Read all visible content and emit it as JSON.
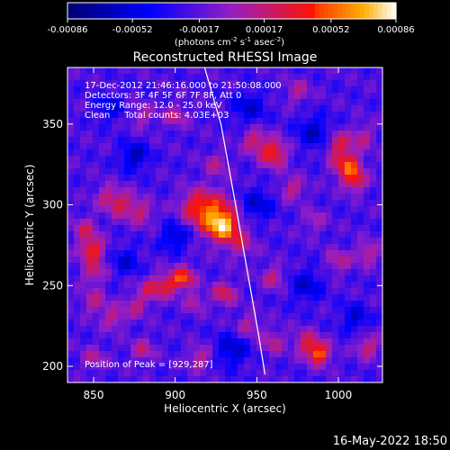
{
  "chart_data": {
    "type": "heatmap",
    "title": "Reconstructed RHESSI Image",
    "xlabel": "Heliocentric X (arcsec)",
    "ylabel": "Heliocentric Y (arcsec)",
    "xlim": [
      834,
      1027
    ],
    "ylim": [
      190,
      385
    ],
    "x_ticks": [
      850,
      900,
      950,
      1000
    ],
    "y_ticks": [
      200,
      250,
      300,
      350
    ],
    "colorbar": {
      "ticks": [
        "-0.00086",
        "-0.00052",
        "-0.00017",
        "0.00017",
        "0.00052",
        "0.00086"
      ],
      "tick_values": [
        -0.00086,
        -0.00052,
        -0.00017,
        0.00017,
        0.00052,
        0.00086
      ],
      "range": [
        -0.00086,
        0.00086
      ],
      "unit_label": "(photons cm",
      "unit_exp1": "-2",
      "unit_mid": " s",
      "unit_exp2": "-1",
      "unit_mid2": " asec",
      "unit_exp3": "-2",
      "unit_end": ")"
    },
    "annotations": [
      "17-Dec-2012 21:46:16.000 to 21:50:08.000",
      "Detectors: 3F 4F 5F 6F 7F 8F, Att 0",
      "Energy Range: 12.0 - 25.0 keV",
      "Clean     Total counts: 4.03E+03"
    ],
    "peak_label": "Position of Peak = [929,287]",
    "peak": [
      929,
      287
    ],
    "limb_curve": [
      [
        918,
        385
      ],
      [
        928,
        350
      ],
      [
        937,
        300
      ],
      [
        944,
        260
      ],
      [
        951,
        220
      ],
      [
        955,
        195
      ]
    ],
    "sources": [
      {
        "x": 929,
        "y": 287,
        "amp": 1.0,
        "r": 7
      },
      {
        "x": 922,
        "y": 297,
        "amp": 0.55,
        "r": 9
      },
      {
        "x": 912,
        "y": 299,
        "amp": 0.45,
        "r": 7
      },
      {
        "x": 940,
        "y": 276,
        "amp": 0.4,
        "r": 6
      },
      {
        "x": 849,
        "y": 272,
        "amp": 0.75,
        "r": 5
      },
      {
        "x": 845,
        "y": 285,
        "amp": 0.45,
        "r": 5
      },
      {
        "x": 850,
        "y": 258,
        "amp": 0.45,
        "r": 5
      },
      {
        "x": 858,
        "y": 305,
        "amp": 0.4,
        "r": 5
      },
      {
        "x": 868,
        "y": 300,
        "amp": 0.5,
        "r": 6
      },
      {
        "x": 880,
        "y": 295,
        "amp": 0.4,
        "r": 5
      },
      {
        "x": 905,
        "y": 255,
        "amp": 0.75,
        "r": 5
      },
      {
        "x": 895,
        "y": 250,
        "amp": 0.55,
        "r": 5
      },
      {
        "x": 885,
        "y": 248,
        "amp": 0.45,
        "r": 5
      },
      {
        "x": 912,
        "y": 240,
        "amp": 0.4,
        "r": 4
      },
      {
        "x": 930,
        "y": 245,
        "amp": 0.55,
        "r": 5
      },
      {
        "x": 876,
        "y": 238,
        "amp": 0.4,
        "r": 5
      },
      {
        "x": 862,
        "y": 230,
        "amp": 0.45,
        "r": 5
      },
      {
        "x": 850,
        "y": 240,
        "amp": 0.4,
        "r": 5
      },
      {
        "x": 960,
        "y": 332,
        "amp": 0.75,
        "r": 6
      },
      {
        "x": 948,
        "y": 340,
        "amp": 0.5,
        "r": 5
      },
      {
        "x": 972,
        "y": 310,
        "amp": 0.45,
        "r": 5
      },
      {
        "x": 1005,
        "y": 325,
        "amp": 0.75,
        "r": 6
      },
      {
        "x": 1010,
        "y": 315,
        "amp": 0.6,
        "r": 5
      },
      {
        "x": 1000,
        "y": 338,
        "amp": 0.55,
        "r": 5
      },
      {
        "x": 1015,
        "y": 342,
        "amp": 0.4,
        "r": 5
      },
      {
        "x": 988,
        "y": 208,
        "amp": 0.85,
        "r": 5
      },
      {
        "x": 980,
        "y": 215,
        "amp": 0.5,
        "r": 5
      },
      {
        "x": 1018,
        "y": 212,
        "amp": 0.5,
        "r": 5
      },
      {
        "x": 1018,
        "y": 270,
        "amp": 0.45,
        "r": 5
      },
      {
        "x": 1000,
        "y": 265,
        "amp": 0.4,
        "r": 5
      },
      {
        "x": 960,
        "y": 255,
        "amp": 0.45,
        "r": 5
      },
      {
        "x": 945,
        "y": 225,
        "amp": 0.4,
        "r": 5
      },
      {
        "x": 960,
        "y": 215,
        "amp": 0.4,
        "r": 5
      },
      {
        "x": 915,
        "y": 205,
        "amp": 0.45,
        "r": 5
      },
      {
        "x": 880,
        "y": 210,
        "amp": 0.4,
        "r": 5
      },
      {
        "x": 850,
        "y": 205,
        "amp": 0.35,
        "r": 5
      },
      {
        "x": 900,
        "y": 355,
        "amp": 0.4,
        "r": 5
      },
      {
        "x": 880,
        "y": 355,
        "amp": 0.35,
        "r": 5
      },
      {
        "x": 975,
        "y": 370,
        "amp": 0.35,
        "r": 5
      },
      {
        "x": 925,
        "y": 325,
        "amp": 0.35,
        "r": 5
      },
      {
        "x": 985,
        "y": 290,
        "amp": 0.3,
        "r": 5
      }
    ],
    "sinks": [
      {
        "x": 900,
        "y": 280,
        "amp": -0.45,
        "r": 6
      },
      {
        "x": 950,
        "y": 300,
        "amp": -0.4,
        "r": 7
      },
      {
        "x": 875,
        "y": 330,
        "amp": -0.5,
        "r": 6
      },
      {
        "x": 985,
        "y": 345,
        "amp": -0.45,
        "r": 7
      },
      {
        "x": 980,
        "y": 250,
        "amp": -0.4,
        "r": 7
      },
      {
        "x": 935,
        "y": 210,
        "amp": -0.45,
        "r": 7
      },
      {
        "x": 870,
        "y": 265,
        "amp": -0.35,
        "r": 6
      },
      {
        "x": 1010,
        "y": 230,
        "amp": -0.4,
        "r": 6
      },
      {
        "x": 945,
        "y": 360,
        "amp": -0.4,
        "r": 7
      },
      {
        "x": 860,
        "y": 360,
        "amp": -0.35,
        "r": 6
      }
    ]
  },
  "footer": {
    "timestamp": "16-May-2022 18:50"
  }
}
